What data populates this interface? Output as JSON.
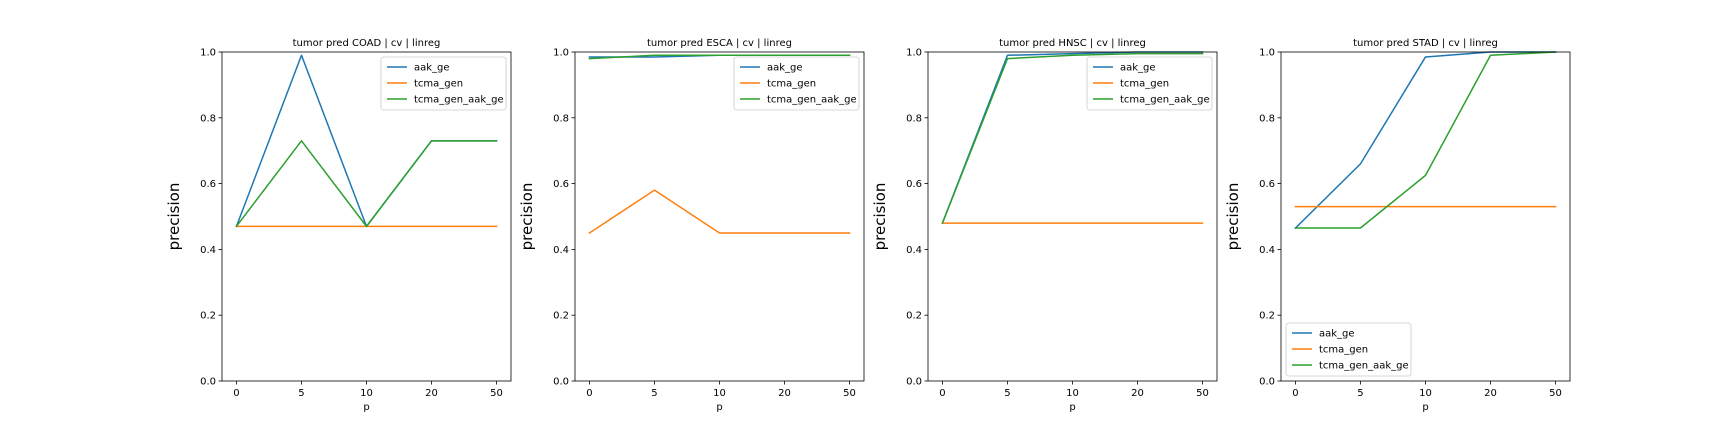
{
  "chart_data": [
    {
      "type": "line",
      "title": "tumor pred COAD | cv | linreg",
      "xlabel": "p",
      "ylabel": "precision",
      "categories": [
        "0",
        "5",
        "10",
        "20",
        "50"
      ],
      "yticks": [
        "0.0",
        "0.2",
        "0.4",
        "0.6",
        "0.8",
        "1.0"
      ],
      "ylim": [
        0,
        1
      ],
      "legend_loc": "upper right",
      "series": [
        {
          "name": "aak_ge",
          "color": "#1f77b4",
          "values": [
            0.47,
            0.99,
            0.47,
            0.73,
            0.73
          ]
        },
        {
          "name": "tcma_gen",
          "color": "#ff7f0e",
          "values": [
            0.47,
            0.47,
            0.47,
            0.47,
            0.47
          ]
        },
        {
          "name": "tcma_gen_aak_ge",
          "color": "#2ca02c",
          "values": [
            0.47,
            0.73,
            0.47,
            0.73,
            0.73
          ]
        }
      ]
    },
    {
      "type": "line",
      "title": "tumor pred ESCA | cv | linreg",
      "xlabel": "p",
      "ylabel": "precision",
      "categories": [
        "0",
        "5",
        "10",
        "20",
        "50"
      ],
      "yticks": [
        "0.0",
        "0.2",
        "0.4",
        "0.6",
        "0.8",
        "1.0"
      ],
      "ylim": [
        0,
        1
      ],
      "legend_loc": "upper right",
      "series": [
        {
          "name": "aak_ge",
          "color": "#1f77b4",
          "values": [
            0.985,
            0.985,
            0.99,
            0.99,
            0.99
          ]
        },
        {
          "name": "tcma_gen",
          "color": "#ff7f0e",
          "values": [
            0.45,
            0.58,
            0.45,
            0.45,
            0.45
          ]
        },
        {
          "name": "tcma_gen_aak_ge",
          "color": "#2ca02c",
          "values": [
            0.98,
            0.99,
            0.99,
            0.99,
            0.99
          ]
        }
      ]
    },
    {
      "type": "line",
      "title": "tumor pred HNSC | cv | linreg",
      "xlabel": "p",
      "ylabel": "precision",
      "categories": [
        "0",
        "5",
        "10",
        "20",
        "50"
      ],
      "yticks": [
        "0.0",
        "0.2",
        "0.4",
        "0.6",
        "0.8",
        "1.0"
      ],
      "ylim": [
        0,
        1
      ],
      "legend_loc": "upper right",
      "series": [
        {
          "name": "aak_ge",
          "color": "#1f77b4",
          "values": [
            0.48,
            0.99,
            0.995,
            1.0,
            1.0
          ]
        },
        {
          "name": "tcma_gen",
          "color": "#ff7f0e",
          "values": [
            0.48,
            0.48,
            0.48,
            0.48,
            0.48
          ]
        },
        {
          "name": "tcma_gen_aak_ge",
          "color": "#2ca02c",
          "values": [
            0.48,
            0.98,
            0.99,
            0.995,
            0.995
          ]
        }
      ]
    },
    {
      "type": "line",
      "title": "tumor pred STAD | cv | linreg",
      "xlabel": "p",
      "ylabel": "precision",
      "categories": [
        "0",
        "5",
        "10",
        "20",
        "50"
      ],
      "yticks": [
        "0.0",
        "0.2",
        "0.4",
        "0.6",
        "0.8",
        "1.0"
      ],
      "ylim": [
        0,
        1
      ],
      "legend_loc": "lower left",
      "series": [
        {
          "name": "aak_ge",
          "color": "#1f77b4",
          "values": [
            0.465,
            0.66,
            0.985,
            1.0,
            1.0
          ]
        },
        {
          "name": "tcma_gen",
          "color": "#ff7f0e",
          "values": [
            0.53,
            0.53,
            0.53,
            0.53,
            0.53
          ]
        },
        {
          "name": "tcma_gen_aak_ge",
          "color": "#2ca02c",
          "values": [
            0.465,
            0.465,
            0.625,
            0.99,
            1.0
          ]
        }
      ]
    }
  ]
}
